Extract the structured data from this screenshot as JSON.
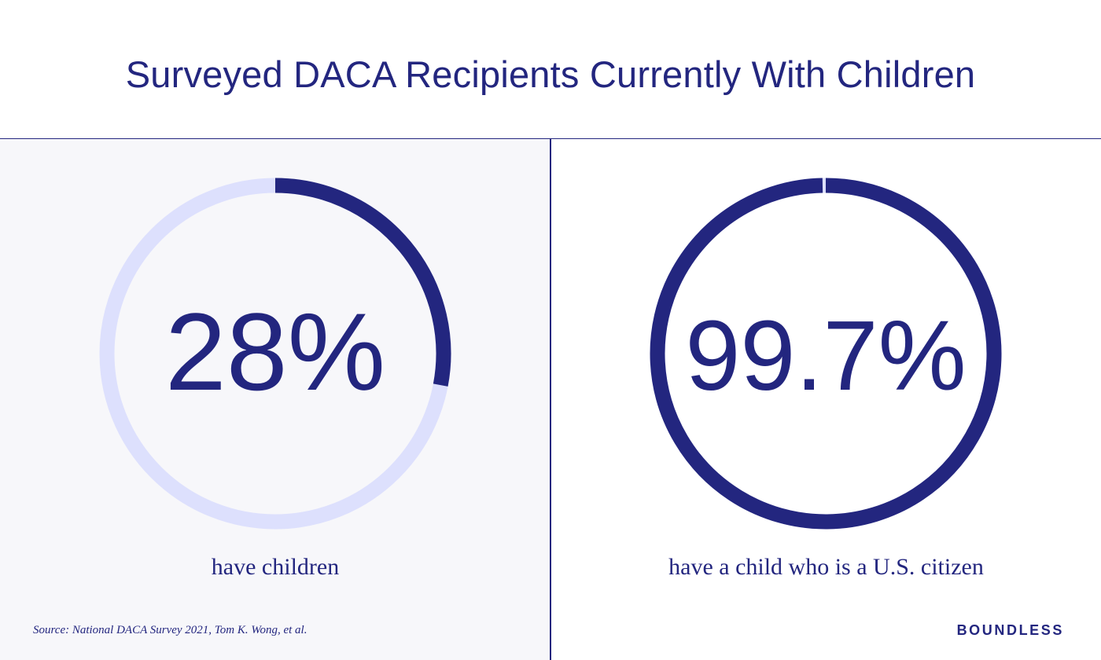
{
  "title": "Surveyed DACA Recipients Currently With Children",
  "colors": {
    "accent": "#23267f",
    "track": "#dde0fd",
    "left_panel_bg": "#f7f7fa",
    "right_panel_bg": "#ffffff"
  },
  "chart_data": [
    {
      "type": "pie",
      "subtype": "donut-progress",
      "value": 28,
      "max": 100,
      "label": "28%",
      "caption": "have children"
    },
    {
      "type": "pie",
      "subtype": "donut-progress",
      "value": 99.7,
      "max": 100,
      "label": "99.7%",
      "caption": "have a child who is a U.S. citizen"
    }
  ],
  "source": "Source: National DACA Survey 2021, Tom K. Wong, et al.",
  "logo": "BOUNDLESS"
}
